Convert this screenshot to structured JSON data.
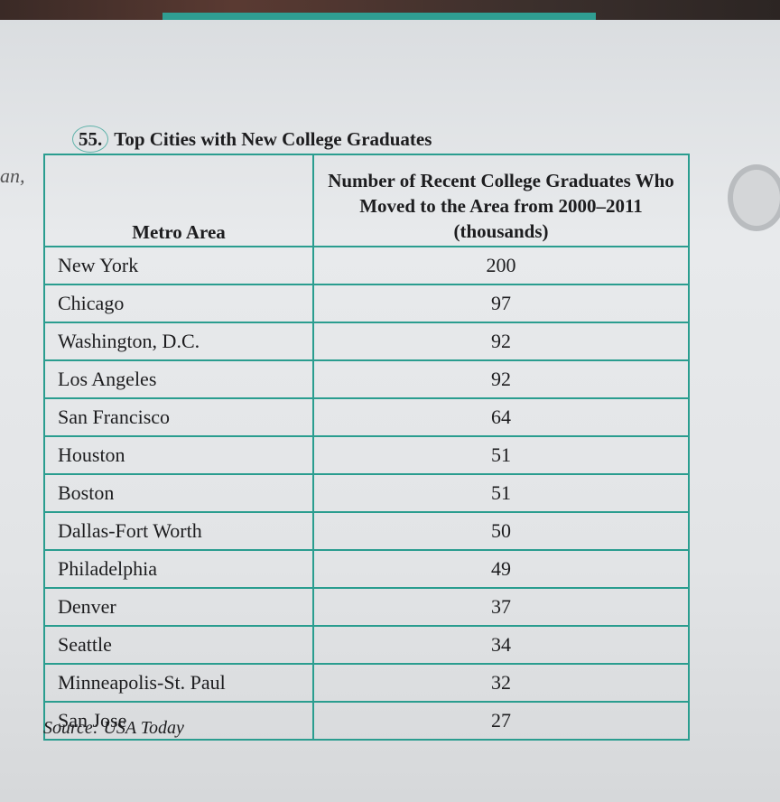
{
  "margin_note": "an,",
  "problem": {
    "number": "55.",
    "title": "Top Cities with New College Graduates"
  },
  "table": {
    "header": [
      "Metro Area",
      "Number of Recent College Graduates Who Moved to the Area from 2000–2011 (thousands)"
    ],
    "rows": [
      [
        "New York",
        "200"
      ],
      [
        "Chicago",
        "97"
      ],
      [
        "Washington, D.C.",
        "92"
      ],
      [
        "Los Angeles",
        "92"
      ],
      [
        "San Francisco",
        "64"
      ],
      [
        "Houston",
        "51"
      ],
      [
        "Boston",
        "51"
      ],
      [
        "Dallas-Fort Worth",
        "50"
      ],
      [
        "Philadelphia",
        "49"
      ],
      [
        "Denver",
        "37"
      ],
      [
        "Seattle",
        "34"
      ],
      [
        "Minneapolis-St. Paul",
        "32"
      ],
      [
        "San Jose",
        "27"
      ]
    ]
  },
  "source": "Source: USA Today"
}
